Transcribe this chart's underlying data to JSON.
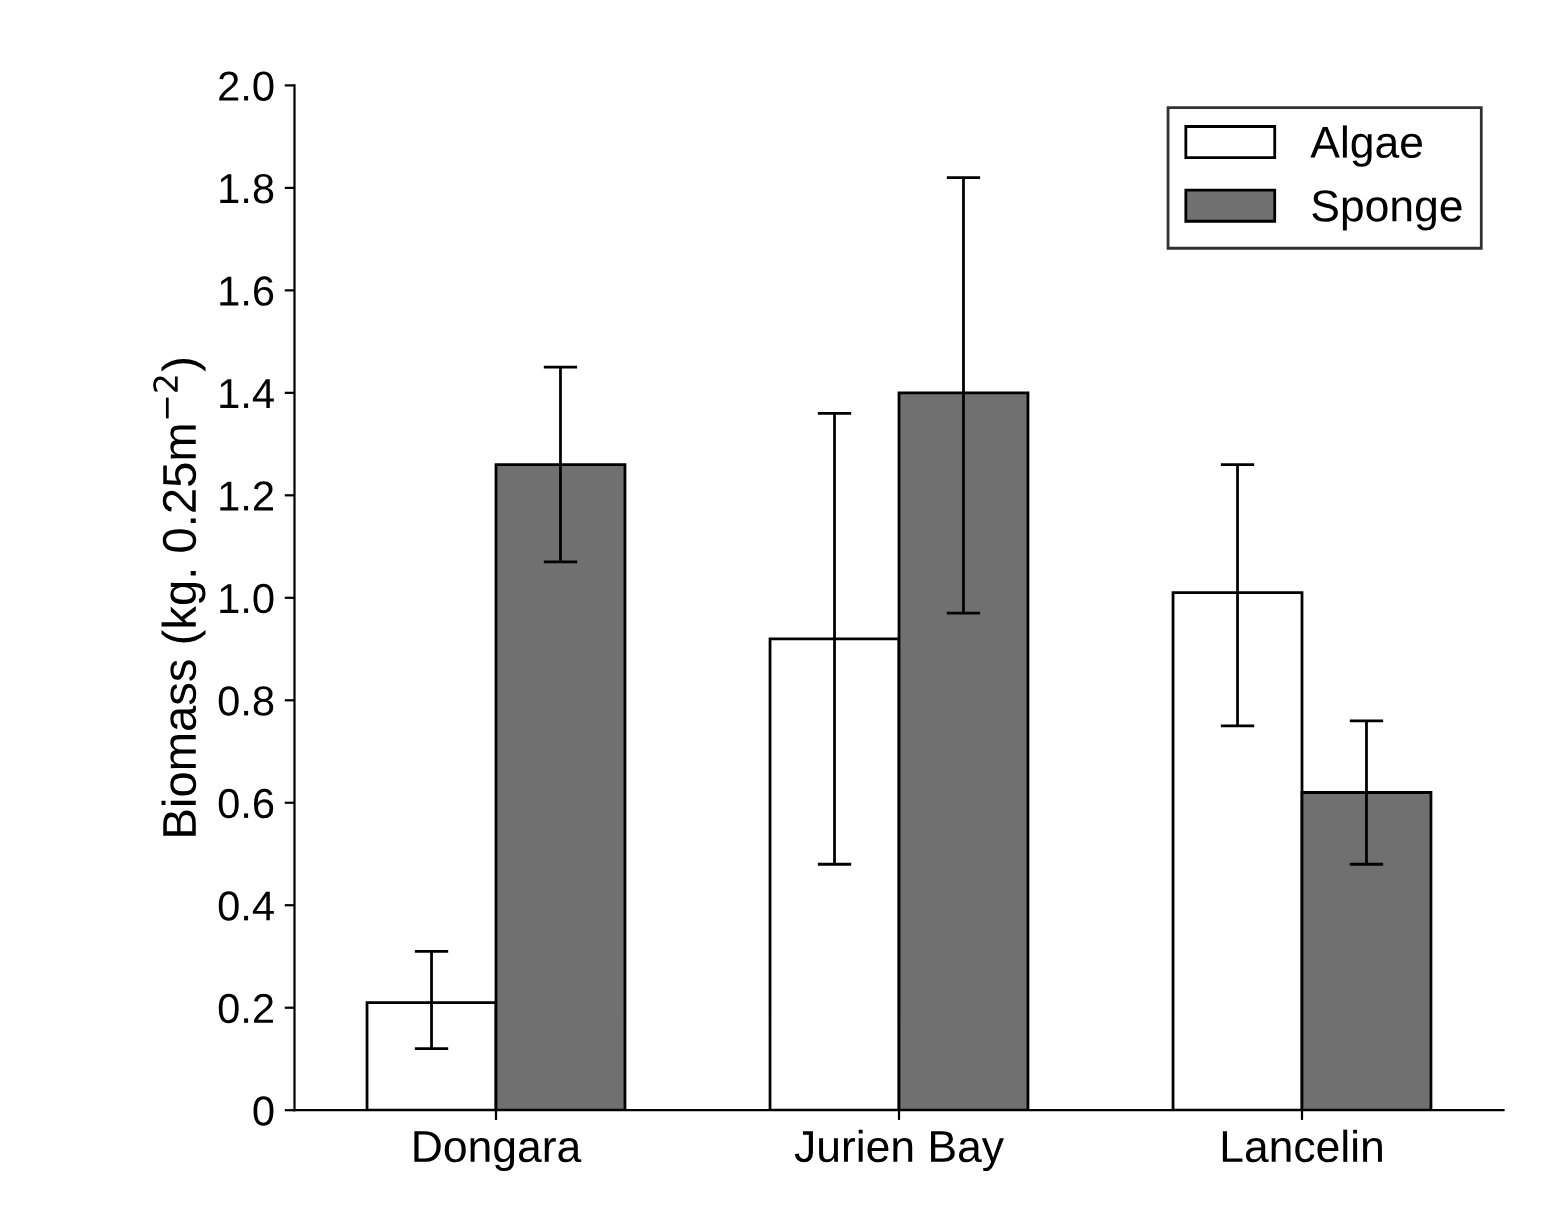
{
  "chart_data": {
    "type": "bar",
    "ylabel": "Biomass (kg. 0.25m$^{−2}$)",
    "categories": [
      "Dongara",
      "Jurien Bay",
      "Lancelin"
    ],
    "series": [
      {
        "name": "Algae",
        "color": "#ffffff",
        "values": [
          0.21,
          0.92,
          1.01
        ],
        "errors": [
          [
            0.12,
            0.31
          ],
          [
            0.48,
            1.36
          ],
          [
            0.75,
            1.26
          ]
        ]
      },
      {
        "name": "Sponge",
        "color": "#707070",
        "values": [
          1.26,
          1.4,
          0.62
        ],
        "errors": [
          [
            1.07,
            1.45
          ],
          [
            0.97,
            1.82
          ],
          [
            0.48,
            0.76
          ]
        ]
      }
    ],
    "ylim": [
      0,
      2.0
    ],
    "yticks": [
      0,
      {
        "value": 0.2,
        "label": "0.2"
      },
      {
        "value": 0.4,
        "label": "0.4"
      },
      {
        "value": 0.6,
        "label": "0.6"
      },
      {
        "value": 0.8,
        "label": "0.8"
      },
      {
        "value": 1.0,
        "label": "1.0"
      },
      {
        "value": 1.2,
        "label": "1.2"
      },
      {
        "value": 1.4,
        "label": "1.4"
      },
      {
        "value": 1.6,
        "label": "1.6"
      },
      {
        "value": 1.8,
        "label": "1.8"
      },
      {
        "value": 2.0,
        "label": "2.0"
      }
    ],
    "grid": false,
    "legend": "top right"
  }
}
